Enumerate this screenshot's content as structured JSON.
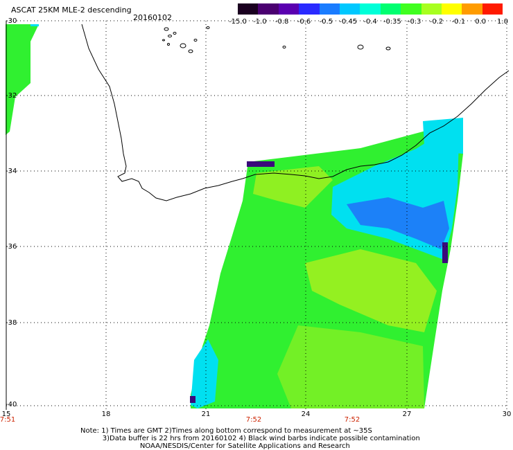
{
  "header": {
    "title": "ASCAT 25KM MLE-2 descending",
    "date": "20160102"
  },
  "colorbar": {
    "labels": [
      "-15.0",
      "-1.0",
      "-0.8",
      "-0.6",
      "-0.5",
      "-0.45",
      "-0.4",
      "-0.35",
      "-0.3",
      "-0.2",
      "-0.1",
      "0.0",
      "1.0"
    ],
    "colors": [
      "#1a0020",
      "#4a0070",
      "#5a00b0",
      "#2a2aff",
      "#1a7cff",
      "#00c8ff",
      "#00ffd8",
      "#00ff70",
      "#40ff20",
      "#a8ff20",
      "#ffff00",
      "#ff9c00",
      "#ff1a00"
    ]
  },
  "axes": {
    "lat_labels": [
      "-30",
      "-32",
      "-34",
      "-36",
      "-38",
      "-40"
    ],
    "lon_labels": [
      "15",
      "18",
      "21",
      "24",
      "27",
      "30"
    ],
    "time_labels": [
      "7:51",
      "7:52",
      "7:52"
    ]
  },
  "notes": {
    "line1": "Note: 1) Times are GMT 2)Times along bottom correspond to measurement at ~35S",
    "line2": "3)Data buffer is 22 hrs from 20160102 4) Black wind barbs indicate possible contamination",
    "line3": "NOAA/NESDIS/Center for Satellite Applications and Research"
  },
  "map": {
    "land_color": "#ffffff",
    "grid": "dotted",
    "swath_colors": {
      "low": "#3333ff",
      "mid": "#00e0f0",
      "main": "#30f030",
      "high": "#a0f020"
    }
  }
}
